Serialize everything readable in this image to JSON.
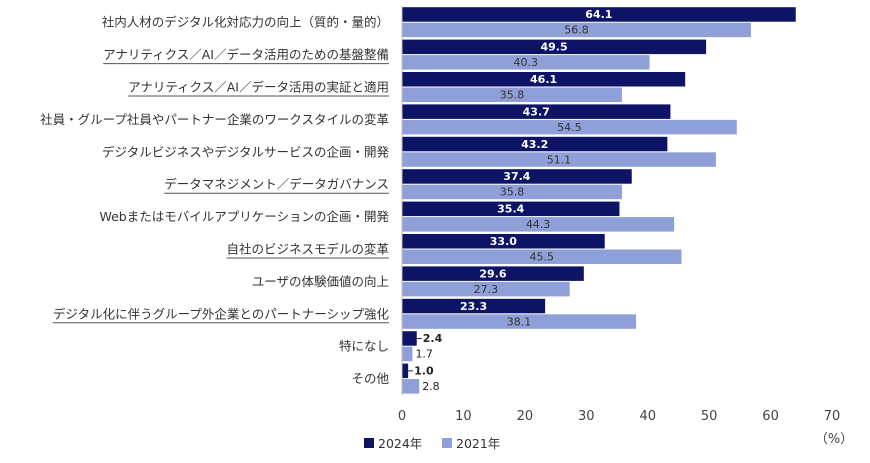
{
  "chart_data": {
    "type": "bar",
    "orientation": "horizontal",
    "categories": [
      "社内人材のデジタル化対応力の向上（質的・量的）",
      "アナリティクス／AI／データ活用のための基盤整備",
      "アナリティクス／AI／データ活用の実証と適用",
      "社員・グループ社員やパートナー企業のワークスタイルの変革",
      "デジタルビジネスやデジタルサービスの企画・開発",
      "データマネジメント／データガバナンス",
      "Webまたはモバイルアプリケーションの企画・開発",
      "自社のビジネスモデルの変革",
      "ユーザの体験価値の向上",
      "デジタル化に伴うグループ外企業とのパートナーシップ強化",
      "特になし",
      "その他"
    ],
    "underlined_categories": [
      1,
      2,
      5,
      7,
      9
    ],
    "series": [
      {
        "name": "2024年",
        "color": "#0d1466",
        "values": [
          64.1,
          49.5,
          46.1,
          43.7,
          43.2,
          37.4,
          35.4,
          33.0,
          29.6,
          23.3,
          2.4,
          1.0
        ],
        "labels": [
          "64.1",
          "49.5",
          "46.1",
          "43.7",
          "43.2",
          "37.4",
          "35.4",
          "33.0",
          "29.6",
          "23.3",
          "2.4",
          "1.0"
        ]
      },
      {
        "name": "2021年",
        "color": "#8f9fd8",
        "values": [
          56.8,
          40.3,
          35.8,
          54.5,
          51.1,
          35.8,
          44.3,
          45.5,
          27.3,
          38.1,
          1.7,
          2.8
        ],
        "labels": [
          "56.8",
          "40.3",
          "35.8",
          "54.5",
          "51.1",
          "35.8",
          "44.3",
          "45.5",
          "27.3",
          "38.1",
          "1.7",
          "2.8"
        ]
      }
    ],
    "xlim": [
      0,
      70
    ],
    "xticks": [
      "0",
      "10",
      "20",
      "30",
      "40",
      "50",
      "60",
      "70"
    ],
    "xunit": "（%）",
    "legend_position": "bottom-left",
    "grid": false
  }
}
